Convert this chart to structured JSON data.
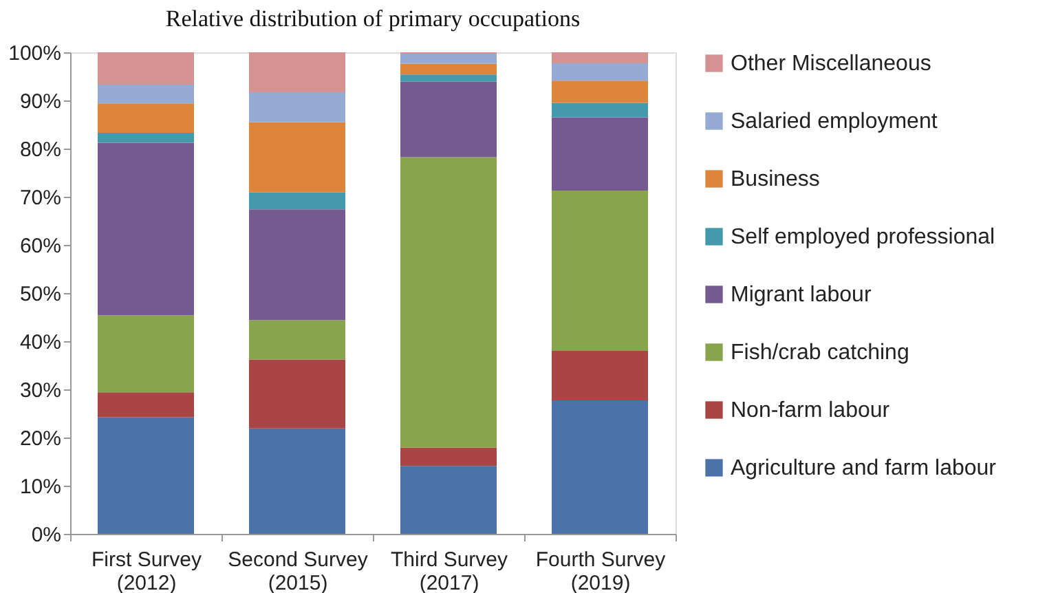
{
  "chart_data": {
    "type": "bar",
    "title": "Relative distribution of primary occupations",
    "stacked": true,
    "legend": "right",
    "grid": false,
    "categories": [
      "First Survey\n(2012)",
      "Second Survey\n(2015)",
      "Third Survey\n(2017)",
      "Fourth Survey\n(2019)"
    ],
    "ylim": [
      0,
      100
    ],
    "yticks": [
      {
        "value": 0,
        "label": "0%"
      },
      {
        "value": 10,
        "label": "10%"
      },
      {
        "value": 20,
        "label": "20%"
      },
      {
        "value": 30,
        "label": "30%"
      },
      {
        "value": 40,
        "label": "40%"
      },
      {
        "value": 50,
        "label": "50%"
      },
      {
        "value": 60,
        "label": "60%"
      },
      {
        "value": 70,
        "label": "70%"
      },
      {
        "value": 80,
        "label": "80%"
      },
      {
        "value": 90,
        "label": "90%"
      },
      {
        "value": 100,
        "label": "100%"
      }
    ],
    "series": [
      {
        "name": "Agriculture and farm labour",
        "color": "#4a71a8",
        "values": [
          24.2,
          21.9,
          14.1,
          27.7
        ]
      },
      {
        "name": "Non-farm labour",
        "color": "#a94544",
        "values": [
          5.2,
          14.3,
          3.8,
          10.3
        ]
      },
      {
        "name": "Fish/crab catching",
        "color": "#88a54e",
        "values": [
          16.0,
          8.2,
          60.3,
          33.3
        ]
      },
      {
        "name": "Migrant labour",
        "color": "#745a8e",
        "values": [
          35.8,
          23.0,
          15.7,
          15.2
        ]
      },
      {
        "name": "Self employed professional",
        "color": "#4499ad",
        "values": [
          2.1,
          3.5,
          1.5,
          3.0
        ]
      },
      {
        "name": "Business",
        "color": "#dd853a",
        "values": [
          6.1,
          14.6,
          2.2,
          4.6
        ]
      },
      {
        "name": "Salaried employment",
        "color": "#95abd3",
        "values": [
          3.9,
          6.2,
          2.1,
          3.6
        ]
      },
      {
        "name": "Other Miscellaneous",
        "color": "#d49290",
        "values": [
          6.7,
          8.3,
          0.3,
          2.3
        ]
      }
    ]
  }
}
